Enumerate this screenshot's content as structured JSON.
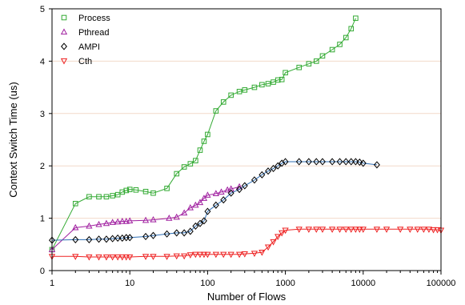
{
  "chart_data": {
    "type": "line",
    "xlabel": "Number of Flows",
    "ylabel": "Context Switch Time (us)",
    "xscale": "log",
    "xlim": [
      1,
      100000
    ],
    "ylim": [
      0,
      5
    ],
    "xticks": [
      1,
      10,
      100,
      1000,
      10000,
      100000
    ],
    "xtick_labels": [
      "1",
      "10",
      "100",
      "1000",
      "10000",
      "100000"
    ],
    "yticks": [
      0,
      1,
      2,
      3,
      4,
      5
    ],
    "ytick_labels": [
      "0",
      "1",
      "2",
      "3",
      "4",
      "5"
    ],
    "grid": "horizontal",
    "grid_color": "#f2d9c9",
    "legend_position": "top-left",
    "series": [
      {
        "name": "Process",
        "color": "#33aa33",
        "marker": "square",
        "x": [
          1,
          2,
          3,
          4,
          5,
          6,
          7,
          8,
          9,
          10,
          12,
          16,
          20,
          30,
          40,
          50,
          60,
          70,
          80,
          90,
          100,
          128,
          160,
          200,
          256,
          300,
          400,
          500,
          600,
          700,
          800,
          900,
          1000,
          1500,
          2000,
          2500,
          3000,
          4000,
          5000,
          6000,
          7000,
          8000
        ],
        "y": [
          0.4,
          1.28,
          1.41,
          1.41,
          1.41,
          1.43,
          1.45,
          1.5,
          1.53,
          1.55,
          1.54,
          1.51,
          1.48,
          1.57,
          1.85,
          1.98,
          2.04,
          2.1,
          2.3,
          2.47,
          2.6,
          3.05,
          3.22,
          3.35,
          3.42,
          3.45,
          3.5,
          3.55,
          3.57,
          3.6,
          3.64,
          3.65,
          3.78,
          3.88,
          3.95,
          4.0,
          4.1,
          4.22,
          4.32,
          4.45,
          4.62,
          4.82
        ]
      },
      {
        "name": "Pthread",
        "color": "#a020a0",
        "marker": "triangle-up",
        "x": [
          1,
          2,
          3,
          4,
          5,
          6,
          7,
          8,
          9,
          10,
          16,
          20,
          32,
          40,
          50,
          60,
          70,
          80,
          90,
          100,
          128,
          150,
          180,
          200,
          256
        ],
        "y": [
          0.4,
          0.82,
          0.85,
          0.88,
          0.9,
          0.92,
          0.93,
          0.94,
          0.94,
          0.95,
          0.96,
          0.97,
          1.0,
          1.02,
          1.1,
          1.2,
          1.25,
          1.3,
          1.38,
          1.44,
          1.47,
          1.5,
          1.54,
          1.56,
          1.6
        ]
      },
      {
        "name": "AMPI",
        "color": "#000000",
        "line_color": "#2f6fb5",
        "marker": "diamond",
        "x": [
          1,
          2,
          3,
          4,
          5,
          6,
          7,
          8,
          9,
          10,
          16,
          20,
          30,
          40,
          50,
          60,
          70,
          80,
          90,
          100,
          128,
          160,
          200,
          256,
          300,
          400,
          500,
          600,
          700,
          800,
          900,
          1000,
          1500,
          2000,
          2500,
          3000,
          4000,
          5000,
          6000,
          7000,
          8000,
          9000,
          10000,
          15000
        ],
        "y": [
          0.58,
          0.59,
          0.59,
          0.6,
          0.6,
          0.61,
          0.62,
          0.62,
          0.63,
          0.63,
          0.65,
          0.67,
          0.7,
          0.72,
          0.72,
          0.75,
          0.85,
          0.9,
          0.95,
          1.13,
          1.25,
          1.35,
          1.48,
          1.55,
          1.62,
          1.73,
          1.83,
          1.9,
          1.95,
          2.0,
          2.05,
          2.08,
          2.08,
          2.08,
          2.08,
          2.08,
          2.08,
          2.08,
          2.08,
          2.08,
          2.08,
          2.07,
          2.05,
          2.02
        ]
      },
      {
        "name": "Cth",
        "color": "#ee2222",
        "marker": "triangle-down",
        "x": [
          1,
          2,
          3,
          4,
          5,
          6,
          7,
          8,
          9,
          10,
          16,
          20,
          30,
          40,
          50,
          60,
          70,
          80,
          90,
          100,
          128,
          160,
          200,
          256,
          300,
          400,
          500,
          600,
          700,
          800,
          900,
          1000,
          1500,
          2000,
          2500,
          3000,
          4000,
          5000,
          6000,
          7000,
          8000,
          9000,
          10000,
          15000,
          20000,
          30000,
          40000,
          50000,
          60000,
          70000,
          80000,
          90000,
          100000
        ],
        "y": [
          0.27,
          0.27,
          0.26,
          0.26,
          0.26,
          0.26,
          0.26,
          0.26,
          0.26,
          0.26,
          0.27,
          0.27,
          0.27,
          0.28,
          0.28,
          0.3,
          0.31,
          0.31,
          0.31,
          0.31,
          0.31,
          0.31,
          0.31,
          0.31,
          0.32,
          0.33,
          0.35,
          0.45,
          0.55,
          0.65,
          0.72,
          0.77,
          0.79,
          0.79,
          0.79,
          0.79,
          0.79,
          0.79,
          0.79,
          0.79,
          0.79,
          0.79,
          0.79,
          0.79,
          0.79,
          0.79,
          0.79,
          0.79,
          0.79,
          0.79,
          0.78,
          0.78,
          0.77
        ]
      }
    ]
  }
}
